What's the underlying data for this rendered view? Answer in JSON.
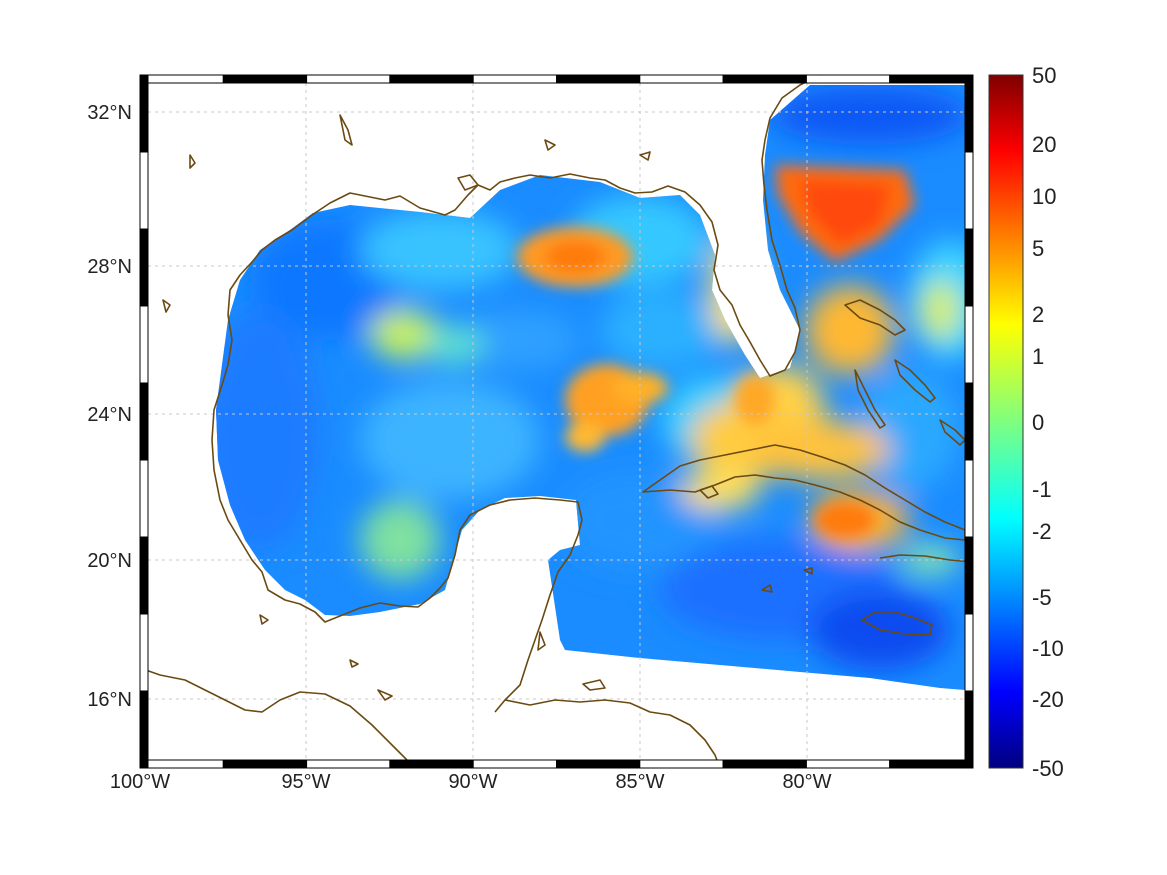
{
  "map": {
    "lon_labels": [
      "100°W",
      "95°W",
      "90°W",
      "85°W",
      "80°W"
    ],
    "lat_labels": [
      "32°N",
      "28°N",
      "24°N",
      "20°N",
      "16°N"
    ],
    "coastline_color": "#6b4a12"
  },
  "colorbar": {
    "labels": [
      "50",
      "20",
      "10",
      "5",
      "2",
      "1",
      "0",
      "-1",
      "-2",
      "-5",
      "-10",
      "-20",
      "-50"
    ],
    "colormap": "jet"
  }
}
